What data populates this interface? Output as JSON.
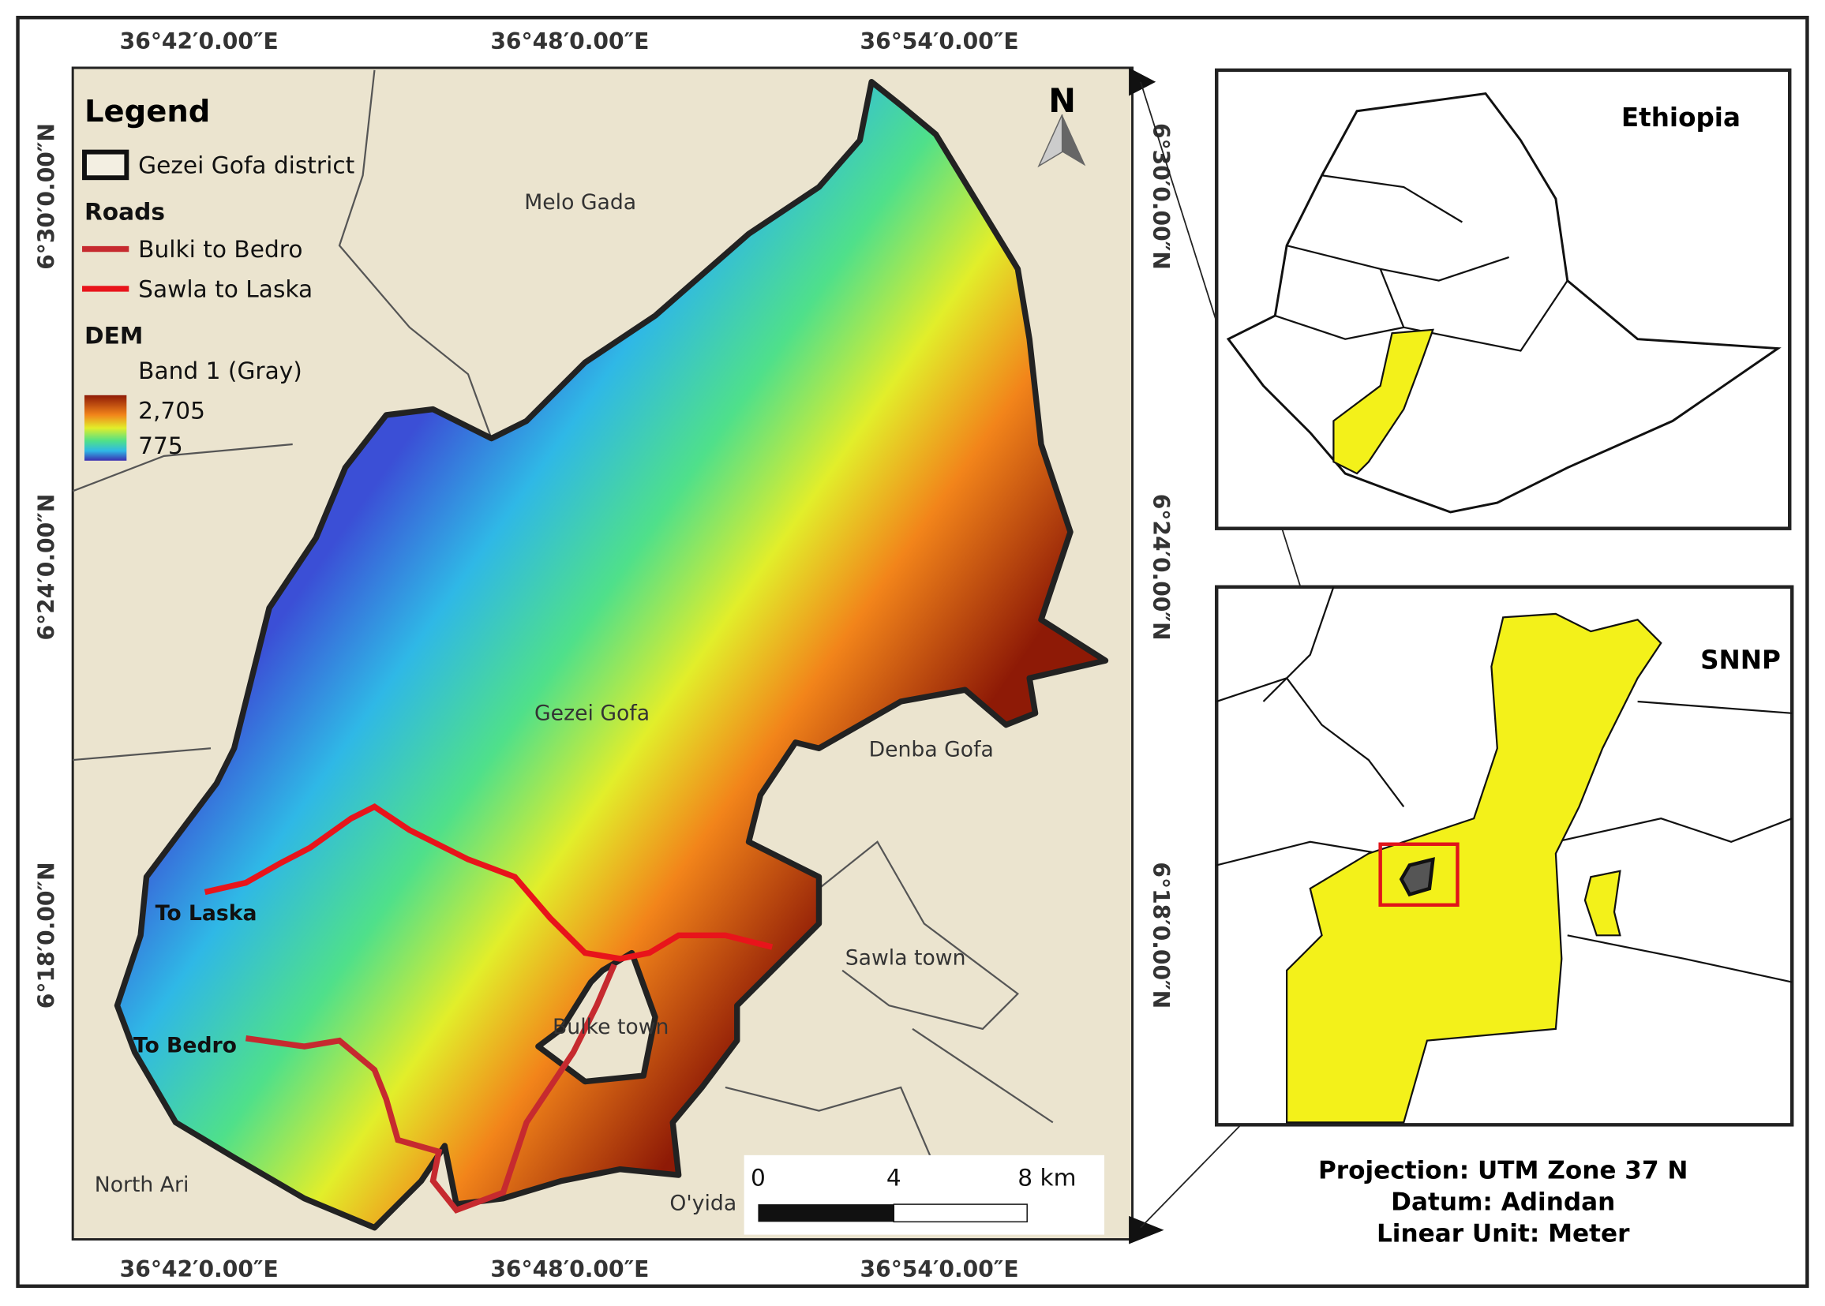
{
  "map": {
    "top_labels": [
      "36°42′0.00″E",
      "36°48′0.00″E",
      "36°54′0.00″E"
    ],
    "bottom_labels": [
      "36°42′0.00″E",
      "36°48′0.00″E",
      "36°54′0.00″E"
    ],
    "left_labels": [
      "6°30′0.00″N",
      "6°24′0.00″N",
      "6°18′0.00″N"
    ],
    "right_labels": [
      "6°30′0.00″N",
      "6°24′0.00″N",
      "6°18′0.00″N"
    ],
    "north": "N",
    "legend": {
      "title": "Legend",
      "district": "Gezei Gofa district",
      "roads_title": "Roads",
      "roads": [
        {
          "name": "Bulki to Bedro",
          "color": "#c62a2f"
        },
        {
          "name": "Sawla to Laska",
          "color": "#e8141b"
        }
      ],
      "dem_title": "DEM",
      "band": "Band 1 (Gray)",
      "max": "2,705",
      "min": "775"
    },
    "places": [
      "Melo Gada",
      "Gezei Gofa",
      "Denba Gofa",
      "Sawla town",
      "Bulke town",
      "North Ari",
      "O'yida"
    ],
    "road_ends": [
      "To Laska",
      "To Bedro"
    ],
    "scale": [
      "0",
      "4",
      "8 km"
    ]
  },
  "insets": [
    {
      "title": "Ethiopia"
    },
    {
      "title": "SNNP"
    }
  ],
  "projection": [
    "Projection: UTM Zone 37 N",
    "Datum: Adindan",
    "Linear Unit: Meter"
  ]
}
